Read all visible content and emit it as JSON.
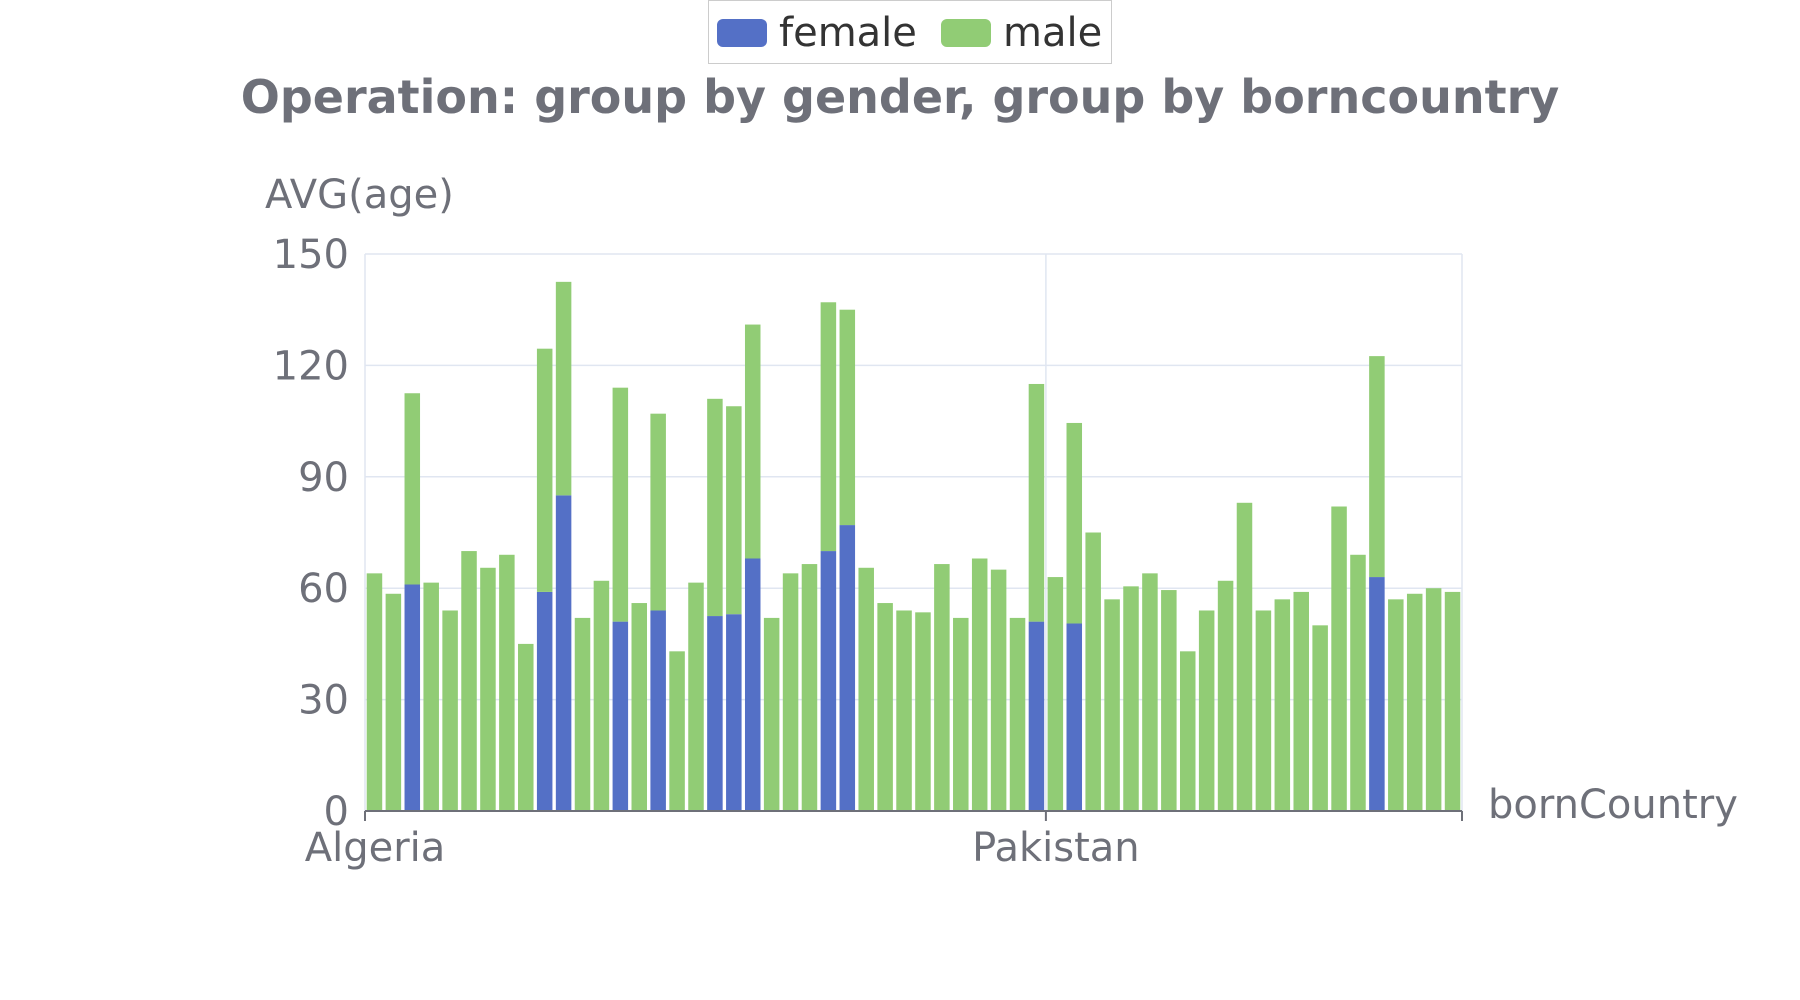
{
  "chart_data": {
    "type": "bar",
    "stacked": true,
    "title": "Operation: group by gender, group by borncountry",
    "xlabel": "bornCountry",
    "ylabel": "AVG(age)",
    "ylim": [
      0,
      150
    ],
    "yticks": [
      0,
      30,
      60,
      90,
      120,
      150
    ],
    "x_tick_labels": [
      {
        "index": 0,
        "label": "Algeria"
      },
      {
        "index": 36,
        "label": "Pakistan"
      }
    ],
    "grid": true,
    "legend_position": "top-center",
    "category_count": 58,
    "series": [
      {
        "name": "female",
        "color": "#5470c6",
        "values": [
          0,
          0,
          61,
          0,
          0,
          0,
          0,
          0,
          0,
          59,
          85,
          0,
          0,
          51,
          0,
          54,
          0,
          0,
          52.5,
          53,
          68,
          0,
          0,
          0,
          70,
          77,
          0,
          0,
          0,
          0,
          0,
          0,
          0,
          0,
          0,
          51,
          0,
          50.5,
          0,
          0,
          0,
          0,
          0,
          0,
          0,
          0,
          0,
          0,
          0,
          0,
          0,
          0,
          0,
          63,
          0,
          0,
          0,
          0
        ]
      },
      {
        "name": "male",
        "color": "#91cc75",
        "values": [
          64,
          58.5,
          51.5,
          61.5,
          54,
          70,
          65.5,
          69,
          45,
          65.5,
          57.5,
          52,
          62,
          63,
          56,
          53,
          43,
          61.5,
          58.5,
          56,
          63,
          52,
          64,
          66.5,
          67,
          58,
          65.5,
          56,
          54,
          53.5,
          66.5,
          52,
          68,
          65,
          52,
          64,
          63,
          54,
          75,
          57,
          60.5,
          64,
          59.5,
          43,
          54,
          62,
          83,
          54,
          57,
          59,
          50,
          82,
          69,
          59.5,
          57,
          58.5,
          60,
          59
        ]
      }
    ]
  }
}
